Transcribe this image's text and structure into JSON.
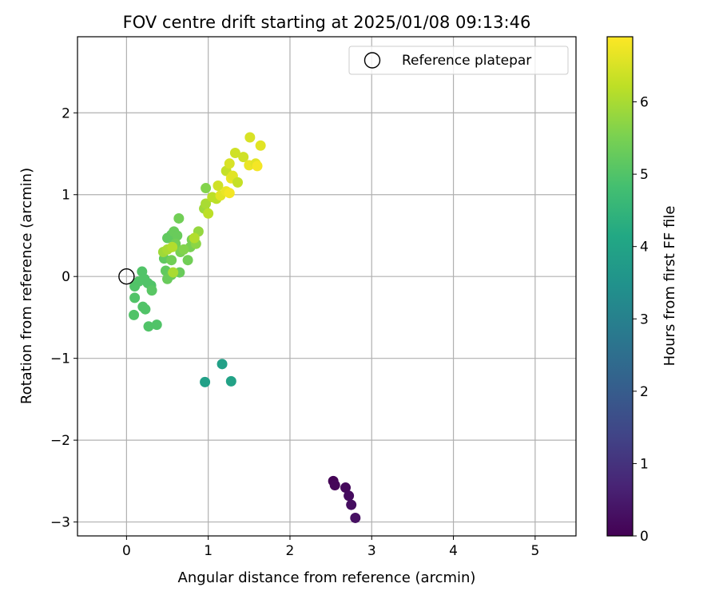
{
  "chart_data": {
    "type": "scatter",
    "title": "FOV centre drift starting at 2025/01/08 09:13:46",
    "xlabel": "Angular distance from reference (arcmin)",
    "ylabel": "Rotation from reference (arcmin)",
    "xlim": [
      -0.6,
      5.5
    ],
    "ylim": [
      -3.17,
      2.93
    ],
    "xticks": [
      0,
      1,
      2,
      3,
      4,
      5
    ],
    "xtick_labels": [
      "0",
      "1",
      "2",
      "3",
      "4",
      "5"
    ],
    "yticks": [
      2,
      1,
      0,
      -1,
      -2,
      -3
    ],
    "ytick_labels": [
      "2",
      "1",
      "0",
      "−1",
      "−2",
      "−3"
    ],
    "grid": true,
    "legend": {
      "location": "top-right",
      "entries": [
        "Reference platepar"
      ]
    },
    "reference_point": {
      "x": 0,
      "y": 0,
      "marker": "open-circle"
    },
    "colorbar": {
      "label": "Hours from first FF file",
      "colormap": "viridis",
      "range": [
        0,
        6.9
      ],
      "ticks": [
        0,
        1,
        2,
        3,
        4,
        5,
        6
      ],
      "tick_labels": [
        "0",
        "1",
        "2",
        "3",
        "4",
        "5",
        "6"
      ]
    },
    "series": [
      {
        "points": [
          [
            2.53,
            -2.5,
            0.05
          ],
          [
            2.55,
            -2.55,
            0.1
          ],
          [
            2.68,
            -2.58,
            0.15
          ],
          [
            2.72,
            -2.68,
            0.2
          ],
          [
            2.75,
            -2.79,
            0.25
          ],
          [
            2.8,
            -2.95,
            0.3
          ],
          [
            0.96,
            -1.29,
            3.9
          ],
          [
            1.17,
            -1.07,
            3.9
          ],
          [
            1.28,
            -1.28,
            3.95
          ],
          [
            0.1,
            -0.12,
            5.0
          ],
          [
            0.15,
            -0.06,
            5.0
          ],
          [
            0.19,
            0.06,
            5.0
          ],
          [
            0.22,
            -0.03,
            5.0
          ],
          [
            0.26,
            -0.08,
            5.0
          ],
          [
            0.3,
            -0.11,
            5.0
          ],
          [
            0.31,
            -0.17,
            5.1
          ],
          [
            0.1,
            -0.26,
            5.0
          ],
          [
            0.2,
            -0.37,
            5.0
          ],
          [
            0.23,
            -0.4,
            5.0
          ],
          [
            0.09,
            -0.47,
            5.0
          ],
          [
            0.27,
            -0.61,
            5.0
          ],
          [
            0.37,
            -0.59,
            5.0
          ],
          [
            0.46,
            0.22,
            5.2
          ],
          [
            0.48,
            0.07,
            5.2
          ],
          [
            0.5,
            -0.03,
            5.3
          ],
          [
            0.55,
            0.02,
            5.3
          ],
          [
            0.5,
            0.47,
            5.2
          ],
          [
            0.55,
            0.51,
            5.2
          ],
          [
            0.58,
            0.55,
            5.3
          ],
          [
            0.62,
            0.5,
            5.3
          ],
          [
            0.64,
            0.71,
            5.4
          ],
          [
            0.6,
            0.4,
            5.4
          ],
          [
            0.65,
            0.05,
            5.3
          ],
          [
            0.66,
            0.3,
            5.5
          ],
          [
            0.75,
            0.2,
            5.4
          ],
          [
            0.78,
            0.36,
            5.5
          ],
          [
            0.8,
            0.45,
            5.5
          ],
          [
            0.85,
            0.4,
            5.7
          ],
          [
            0.88,
            0.55,
            5.8
          ],
          [
            0.55,
            0.2,
            5.4
          ],
          [
            0.7,
            0.33,
            5.6
          ],
          [
            0.45,
            0.3,
            5.9
          ],
          [
            0.5,
            0.33,
            6.0
          ],
          [
            0.56,
            0.36,
            6.1
          ],
          [
            0.83,
            0.47,
            6.1
          ],
          [
            0.57,
            0.05,
            6.0
          ],
          [
            0.95,
            0.83,
            5.9
          ],
          [
            0.97,
            0.89,
            6.0
          ],
          [
            0.97,
            1.08,
            5.6
          ],
          [
            1.0,
            0.77,
            6.2
          ],
          [
            1.05,
            0.97,
            6.2
          ],
          [
            1.1,
            0.95,
            6.2
          ],
          [
            1.12,
            1.11,
            6.4
          ],
          [
            1.15,
            0.99,
            6.6
          ],
          [
            1.22,
            1.04,
            6.7
          ],
          [
            1.26,
            1.02,
            6.8
          ],
          [
            1.22,
            1.29,
            6.3
          ],
          [
            1.26,
            1.38,
            6.5
          ],
          [
            1.28,
            1.2,
            6.7
          ],
          [
            1.3,
            1.23,
            6.6
          ],
          [
            1.36,
            1.15,
            6.3
          ],
          [
            1.33,
            1.51,
            6.4
          ],
          [
            1.43,
            1.46,
            6.4
          ],
          [
            1.51,
            1.7,
            6.5
          ],
          [
            1.5,
            1.36,
            6.7
          ],
          [
            1.58,
            1.38,
            6.6
          ],
          [
            1.6,
            1.35,
            6.8
          ],
          [
            1.64,
            1.6,
            6.6
          ]
        ]
      }
    ]
  }
}
